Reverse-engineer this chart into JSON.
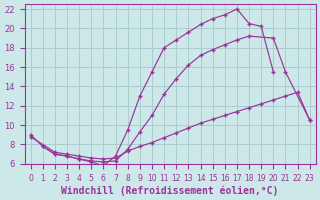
{
  "background_color": "#cce8e8",
  "grid_color": "#aacccc",
  "line_color": "#993399",
  "xlabel": "Windchill (Refroidissement éolien,°C)",
  "xlabel_fontsize": 7,
  "xtick_fontsize": 5.5,
  "ytick_fontsize": 6,
  "xlim": [
    -0.5,
    23.5
  ],
  "ylim": [
    6,
    22.5
  ],
  "yticks": [
    6,
    8,
    10,
    12,
    14,
    16,
    18,
    20,
    22
  ],
  "xticks": [
    0,
    1,
    2,
    3,
    4,
    5,
    6,
    7,
    8,
    9,
    10,
    11,
    12,
    13,
    14,
    15,
    16,
    17,
    18,
    19,
    20,
    21,
    22,
    23
  ],
  "curve1_x": [
    0,
    1,
    2,
    3,
    4,
    5,
    6,
    7,
    8,
    9,
    10,
    11,
    12,
    13,
    14,
    15,
    16,
    17,
    18,
    19,
    20
  ],
  "curve1_y": [
    9.0,
    7.8,
    7.0,
    6.8,
    6.5,
    6.2,
    5.8,
    6.8,
    9.5,
    13.0,
    15.5,
    18.0,
    18.8,
    19.6,
    20.4,
    21.0,
    21.4,
    22.0,
    20.5,
    20.2,
    15.5
  ],
  "curve2_x": [
    1,
    2,
    3,
    4,
    5,
    6,
    7,
    8,
    9,
    10,
    11,
    12,
    13,
    14,
    15,
    16,
    17,
    18,
    20,
    21,
    23
  ],
  "curve2_y": [
    7.8,
    7.0,
    6.8,
    6.5,
    6.3,
    6.2,
    6.3,
    7.5,
    9.3,
    11.0,
    13.2,
    14.8,
    16.2,
    17.2,
    17.8,
    18.3,
    18.8,
    19.2,
    19.0,
    15.5,
    10.5
  ],
  "curve3_x": [
    0,
    2,
    3,
    4,
    5,
    6,
    7,
    8,
    9,
    10,
    11,
    12,
    13,
    14,
    15,
    16,
    17,
    18,
    19,
    20,
    21,
    22,
    23
  ],
  "curve3_y": [
    8.8,
    7.2,
    7.0,
    6.8,
    6.6,
    6.5,
    6.6,
    7.3,
    7.8,
    8.2,
    8.7,
    9.2,
    9.7,
    10.2,
    10.6,
    11.0,
    11.4,
    11.8,
    12.2,
    12.6,
    13.0,
    13.4,
    10.5
  ]
}
